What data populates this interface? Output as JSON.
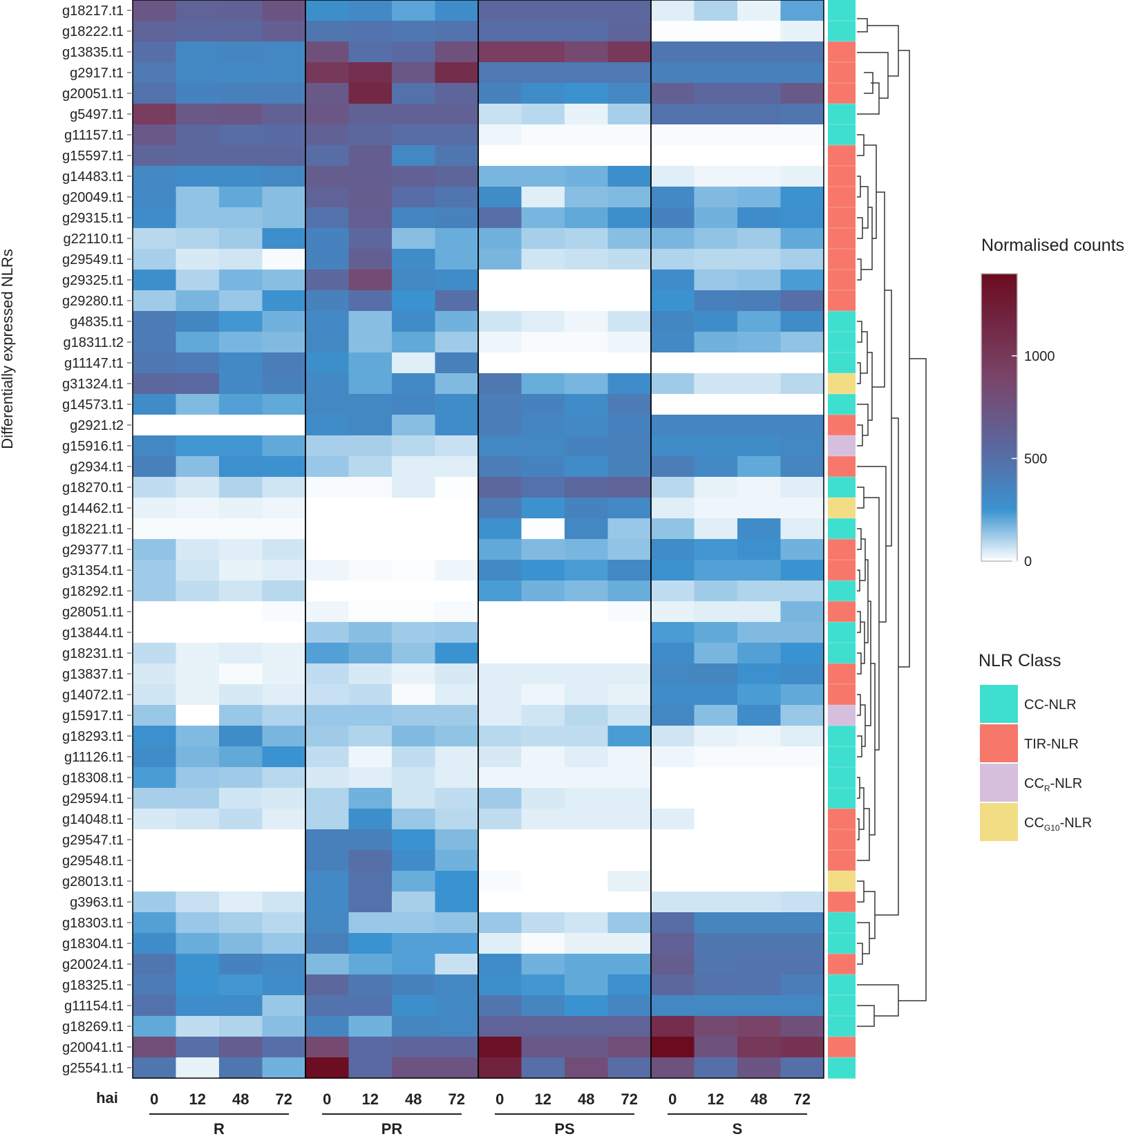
{
  "chart_data": {
    "type": "heatmap",
    "ylabel": "Differentially expressed NLRs",
    "x_axis_label": "hai",
    "groups": [
      "R",
      "PR",
      "PS",
      "S"
    ],
    "timepoints": [
      "0",
      "12",
      "48",
      "72"
    ],
    "rows": [
      {
        "gene": "g18217.t1",
        "class": "CC",
        "values": [
          720,
          600,
          620,
          740,
          280,
          320,
          210,
          290,
          560,
          560,
          560,
          560,
          40,
          100,
          30,
          210
        ]
      },
      {
        "gene": "g18222.t1",
        "class": "CC",
        "values": [
          600,
          560,
          560,
          640,
          450,
          470,
          440,
          470,
          520,
          520,
          520,
          580,
          5,
          5,
          5,
          30
        ]
      },
      {
        "gene": "g13835.t1",
        "class": "TIR",
        "values": [
          500,
          330,
          350,
          330,
          780,
          500,
          540,
          770,
          950,
          950,
          850,
          1000,
          450,
          450,
          450,
          450
        ]
      },
      {
        "gene": "g2917.t1",
        "class": "TIR",
        "values": [
          430,
          330,
          320,
          330,
          1000,
          1080,
          720,
          1100,
          430,
          430,
          430,
          430,
          380,
          380,
          380,
          380
        ]
      },
      {
        "gene": "g20051.t1",
        "class": "TIR",
        "values": [
          480,
          360,
          380,
          390,
          700,
          1150,
          480,
          580,
          370,
          300,
          260,
          330,
          640,
          560,
          560,
          700
        ]
      },
      {
        "gene": "g5497.t1",
        "class": "CC",
        "values": [
          960,
          700,
          720,
          620,
          720,
          620,
          620,
          620,
          70,
          90,
          30,
          110,
          480,
          480,
          480,
          450
        ]
      },
      {
        "gene": "g11157.t1",
        "class": "CC",
        "values": [
          700,
          560,
          520,
          530,
          620,
          560,
          520,
          520,
          20,
          10,
          10,
          10,
          10,
          10,
          10,
          10
        ]
      },
      {
        "gene": "g15597.t1",
        "class": "TIR",
        "values": [
          580,
          560,
          560,
          560,
          520,
          650,
          330,
          450,
          0,
          0,
          0,
          0,
          0,
          0,
          0,
          0
        ]
      },
      {
        "gene": "g14483.t1",
        "class": "TIR",
        "values": [
          330,
          300,
          300,
          330,
          660,
          650,
          620,
          580,
          170,
          170,
          180,
          280,
          40,
          20,
          20,
          30
        ]
      },
      {
        "gene": "g20049.t1",
        "class": "TIR",
        "values": [
          320,
          140,
          200,
          150,
          600,
          660,
          520,
          460,
          300,
          40,
          150,
          160,
          320,
          160,
          170,
          260
        ]
      },
      {
        "gene": "g29315.t1",
        "class": "TIR",
        "values": [
          290,
          140,
          140,
          150,
          480,
          640,
          340,
          370,
          500,
          170,
          200,
          280,
          360,
          180,
          290,
          270
        ]
      },
      {
        "gene": "g22110.t1",
        "class": "TIR",
        "values": [
          90,
          100,
          120,
          280,
          360,
          560,
          150,
          190,
          180,
          110,
          100,
          150,
          170,
          140,
          120,
          200
        ]
      },
      {
        "gene": "g29549.t1",
        "class": "TIR",
        "values": [
          110,
          50,
          60,
          10,
          360,
          640,
          300,
          190,
          170,
          60,
          70,
          80,
          100,
          90,
          90,
          110
        ]
      },
      {
        "gene": "g29325.t1",
        "class": "TIR",
        "values": [
          280,
          100,
          170,
          150,
          560,
          830,
          330,
          300,
          0,
          0,
          0,
          0,
          290,
          130,
          140,
          230
        ]
      },
      {
        "gene": "g29280.t1",
        "class": "TIR",
        "values": [
          120,
          170,
          130,
          260,
          370,
          500,
          250,
          500,
          0,
          0,
          0,
          0,
          250,
          380,
          400,
          500
        ]
      },
      {
        "gene": "g4835.t1",
        "class": "CC",
        "values": [
          420,
          340,
          240,
          180,
          320,
          150,
          300,
          180,
          60,
          40,
          20,
          60,
          340,
          290,
          200,
          300
        ]
      },
      {
        "gene": "g18311.t2",
        "class": "CC",
        "values": [
          420,
          200,
          170,
          160,
          330,
          150,
          200,
          120,
          20,
          10,
          10,
          20,
          320,
          180,
          170,
          140
        ]
      },
      {
        "gene": "g11147.t1",
        "class": "CC",
        "values": [
          440,
          420,
          320,
          400,
          280,
          200,
          40,
          380,
          0,
          0,
          0,
          0,
          0,
          0,
          0,
          0
        ]
      },
      {
        "gene": "g31324.t1",
        "class": "CC-G10",
        "values": [
          560,
          540,
          320,
          380,
          320,
          200,
          320,
          160,
          440,
          190,
          170,
          290,
          120,
          60,
          60,
          90
        ]
      },
      {
        "gene": "g14573.t1",
        "class": "CC",
        "values": [
          300,
          160,
          220,
          200,
          330,
          330,
          340,
          300,
          400,
          360,
          300,
          420,
          0,
          0,
          0,
          0
        ]
      },
      {
        "gene": "g2921.t2",
        "class": "TIR",
        "values": [
          0,
          0,
          0,
          0,
          300,
          330,
          150,
          300,
          400,
          340,
          320,
          360,
          340,
          340,
          340,
          340
        ]
      },
      {
        "gene": "g15916.t1",
        "class": "CC-R",
        "values": [
          330,
          240,
          240,
          200,
          110,
          110,
          90,
          70,
          330,
          330,
          360,
          380,
          300,
          300,
          300,
          330
        ]
      },
      {
        "gene": "g2934.t1",
        "class": "TIR",
        "values": [
          380,
          150,
          270,
          260,
          130,
          90,
          40,
          40,
          400,
          360,
          300,
          370,
          400,
          320,
          200,
          350
        ]
      },
      {
        "gene": "g18270.t1",
        "class": "CC",
        "values": [
          80,
          50,
          100,
          60,
          10,
          10,
          40,
          5,
          560,
          480,
          560,
          600,
          90,
          30,
          20,
          40
        ]
      },
      {
        "gene": "g14462.t1",
        "class": "CC-G10",
        "values": [
          30,
          20,
          30,
          20,
          0,
          0,
          0,
          0,
          420,
          260,
          360,
          320,
          40,
          20,
          20,
          20
        ]
      },
      {
        "gene": "g18221.t1",
        "class": "CC",
        "values": [
          10,
          10,
          10,
          10,
          0,
          0,
          0,
          0,
          270,
          5,
          330,
          130,
          140,
          40,
          300,
          40
        ]
      },
      {
        "gene": "g29377.t1",
        "class": "TIR",
        "values": [
          140,
          50,
          40,
          60,
          0,
          0,
          0,
          0,
          200,
          160,
          170,
          140,
          300,
          240,
          270,
          180
        ]
      },
      {
        "gene": "g31354.t1",
        "class": "TIR",
        "values": [
          120,
          60,
          30,
          40,
          20,
          10,
          5,
          20,
          310,
          250,
          230,
          320,
          260,
          220,
          220,
          250
        ]
      },
      {
        "gene": "g18292.t1",
        "class": "CC",
        "values": [
          120,
          80,
          60,
          90,
          0,
          0,
          0,
          0,
          230,
          180,
          160,
          190,
          80,
          120,
          100,
          100
        ]
      },
      {
        "gene": "g28051.t1",
        "class": "TIR",
        "values": [
          0,
          0,
          0,
          10,
          20,
          5,
          5,
          10,
          0,
          0,
          0,
          10,
          30,
          40,
          40,
          170
        ]
      },
      {
        "gene": "g13844.t1",
        "class": "CC",
        "values": [
          0,
          0,
          0,
          0,
          120,
          150,
          120,
          130,
          0,
          0,
          0,
          0,
          230,
          200,
          160,
          160
        ]
      },
      {
        "gene": "g18231.t1",
        "class": "CC",
        "values": [
          80,
          30,
          40,
          30,
          220,
          190,
          140,
          250,
          0,
          0,
          0,
          0,
          300,
          170,
          220,
          250
        ]
      },
      {
        "gene": "g13837.t1",
        "class": "TIR",
        "values": [
          50,
          30,
          10,
          30,
          80,
          50,
          30,
          50,
          40,
          40,
          40,
          40,
          330,
          350,
          270,
          300
        ]
      },
      {
        "gene": "g14072.t1",
        "class": "TIR",
        "values": [
          60,
          30,
          50,
          40,
          70,
          80,
          10,
          40,
          40,
          20,
          40,
          30,
          300,
          290,
          230,
          200
        ]
      },
      {
        "gene": "g15917.t1",
        "class": "CC-R",
        "values": [
          130,
          0,
          130,
          100,
          130,
          130,
          120,
          120,
          40,
          60,
          90,
          60,
          330,
          150,
          300,
          130
        ]
      },
      {
        "gene": "g18293.t1",
        "class": "CC",
        "values": [
          270,
          160,
          300,
          170,
          120,
          100,
          160,
          140,
          90,
          80,
          80,
          230,
          60,
          30,
          20,
          40
        ]
      },
      {
        "gene": "g11126.t1",
        "class": "CC",
        "values": [
          300,
          170,
          200,
          250,
          80,
          20,
          80,
          40,
          50,
          20,
          40,
          20,
          20,
          10,
          10,
          10
        ]
      },
      {
        "gene": "g18308.t1",
        "class": "CC",
        "values": [
          230,
          130,
          120,
          90,
          50,
          40,
          60,
          40,
          20,
          20,
          20,
          20,
          0,
          0,
          0,
          0
        ]
      },
      {
        "gene": "g29594.t1",
        "class": "CC",
        "values": [
          110,
          110,
          60,
          50,
          100,
          180,
          60,
          80,
          120,
          50,
          40,
          40,
          0,
          0,
          0,
          0
        ]
      },
      {
        "gene": "g14048.t1",
        "class": "TIR",
        "values": [
          50,
          60,
          80,
          40,
          100,
          280,
          130,
          90,
          80,
          40,
          40,
          40,
          40,
          0,
          0,
          0
        ]
      },
      {
        "gene": "g29547.t1",
        "class": "TIR",
        "values": [
          0,
          0,
          0,
          0,
          380,
          380,
          250,
          160,
          0,
          0,
          0,
          0,
          0,
          0,
          0,
          0
        ]
      },
      {
        "gene": "g29548.t1",
        "class": "TIR",
        "values": [
          0,
          0,
          0,
          0,
          380,
          500,
          300,
          180,
          0,
          0,
          0,
          0,
          0,
          0,
          0,
          0
        ]
      },
      {
        "gene": "g28013.t1",
        "class": "CC-G10",
        "values": [
          0,
          0,
          0,
          0,
          320,
          480,
          190,
          250,
          10,
          0,
          0,
          30,
          0,
          0,
          0,
          0
        ]
      },
      {
        "gene": "g3963.t1",
        "class": "TIR",
        "values": [
          120,
          70,
          40,
          60,
          320,
          480,
          110,
          250,
          0,
          0,
          0,
          0,
          60,
          60,
          60,
          70
        ]
      },
      {
        "gene": "g18303.t1",
        "class": "CC",
        "values": [
          220,
          130,
          110,
          90,
          330,
          130,
          130,
          140,
          130,
          80,
          60,
          130,
          520,
          350,
          350,
          350
        ]
      },
      {
        "gene": "g18304.t1",
        "class": "CC",
        "values": [
          290,
          190,
          160,
          130,
          380,
          250,
          220,
          220,
          40,
          10,
          30,
          30,
          620,
          450,
          450,
          450
        ]
      },
      {
        "gene": "g20024.t1",
        "class": "TIR",
        "values": [
          450,
          260,
          360,
          320,
          160,
          200,
          220,
          70,
          300,
          180,
          200,
          200,
          660,
          460,
          470,
          470
        ]
      },
      {
        "gene": "g18325.t1",
        "class": "CC",
        "values": [
          420,
          250,
          240,
          300,
          560,
          440,
          370,
          330,
          280,
          240,
          200,
          270,
          560,
          480,
          470,
          400
        ]
      },
      {
        "gene": "g11154.t1",
        "class": "CC",
        "values": [
          480,
          290,
          300,
          130,
          470,
          470,
          280,
          320,
          460,
          350,
          250,
          340,
          330,
          330,
          330,
          330
        ]
      },
      {
        "gene": "g18269.t1",
        "class": "CC",
        "values": [
          200,
          80,
          100,
          150,
          350,
          180,
          350,
          330,
          600,
          600,
          600,
          600,
          1100,
          850,
          900,
          780
        ]
      },
      {
        "gene": "g20041.t1",
        "class": "TIR",
        "values": [
          800,
          500,
          650,
          500,
          850,
          540,
          580,
          580,
          1350,
          700,
          700,
          800,
          1400,
          760,
          1000,
          1050
        ]
      },
      {
        "gene": "g25541.t1",
        "class": "CC",
        "values": [
          450,
          30,
          450,
          180,
          1380,
          540,
          750,
          750,
          1200,
          500,
          800,
          520,
          760,
          500,
          730,
          500
        ]
      }
    ],
    "colorbar": {
      "title": "Normalised counts",
      "min": 0,
      "max": 1400,
      "ticks": [
        0,
        500,
        1000
      ],
      "stops": [
        {
          "value": 0,
          "color": "#ffffff"
        },
        {
          "value": 250,
          "color": "#3a93d0"
        },
        {
          "value": 550,
          "color": "#5b68a0"
        },
        {
          "value": 900,
          "color": "#7a4468"
        },
        {
          "value": 1400,
          "color": "#6b0b1f"
        }
      ]
    },
    "class_legend": {
      "title": "NLR Class",
      "items": [
        {
          "key": "CC",
          "label": "CC-NLR",
          "main": "CC",
          "sub": "",
          "color": "#3fdfcf"
        },
        {
          "key": "TIR",
          "label": "TIR-NLR",
          "main": "TIR",
          "sub": "",
          "color": "#f7786a"
        },
        {
          "key": "CC-R",
          "label": "CCR-NLR",
          "main": "CC",
          "sub": "R",
          "color": "#d6bfdc"
        },
        {
          "key": "CC-G10",
          "label": "CCG10-NLR",
          "main": "CC",
          "sub": "G10",
          "color": "#f3dd84"
        }
      ]
    }
  }
}
